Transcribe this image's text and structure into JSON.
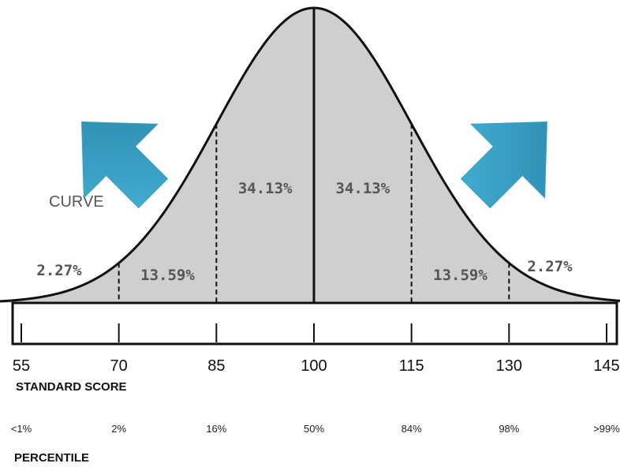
{
  "chart_data": {
    "type": "area",
    "distribution": "normal",
    "mean": 100,
    "sd": 15,
    "xlim": [
      55,
      145
    ],
    "x_ticks": [
      55,
      70,
      85,
      100,
      115,
      130,
      145
    ],
    "x_tick_labels": [
      "55",
      "70",
      "85",
      "100",
      "115",
      "130",
      "145"
    ],
    "xlabel": "STANDARD SCORE",
    "percentile_labels": [
      "<1%",
      "2%",
      "16%",
      "50%",
      "84%",
      "98%",
      ">99%"
    ],
    "percentile_title": "PERCENTILE",
    "region_labels": [
      {
        "text": "2.27%",
        "from": 55,
        "to": 70,
        "side": "left-tail"
      },
      {
        "text": "13.59%",
        "from": 70,
        "to": 85
      },
      {
        "text": "34.13%",
        "from": 85,
        "to": 100
      },
      {
        "text": "34.13%",
        "from": 100,
        "to": 115
      },
      {
        "text": "13.59%",
        "from": 115,
        "to": 130
      },
      {
        "text": "2.27%",
        "from": 130,
        "to": 145,
        "side": "right-tail"
      }
    ],
    "divider_lines": [
      70,
      85,
      100,
      115,
      130
    ],
    "background_text": "CURVE",
    "fill_color": "#cfcfcf",
    "arrow_color": "#3a9ec4"
  }
}
